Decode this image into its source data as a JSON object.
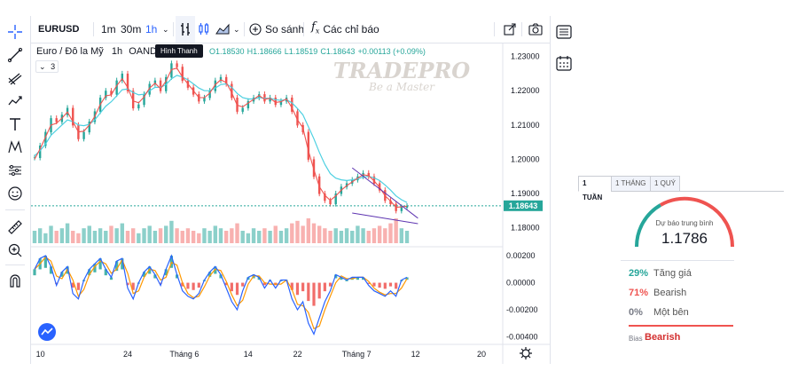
{
  "symbol": "EURUSD",
  "timeframes": [
    "1m",
    "30m",
    "1h"
  ],
  "active_timeframe": "1h",
  "tooltip": "Hình Thanh",
  "compare_label": "So sánh",
  "indicators_label": "Các chỉ báo",
  "legend": {
    "name": "Euro / Đô la Mỹ",
    "interval": "1h",
    "exchange": "OAND",
    "open": "O1.18530",
    "high": "H1.18666",
    "low": "L1.18519",
    "close": "C1.18643",
    "change": "+0.00113 (+0.09%)",
    "collapsed_count": "3"
  },
  "watermark": {
    "brand": "TRADEPRO",
    "tagline": "Be a Master"
  },
  "price_axis": [
    "1.23000",
    "1.22000",
    "1.21000",
    "1.20000",
    "1.19000",
    "1.18000"
  ],
  "current_price": "1.18643",
  "osc_axis": [
    "0.00200",
    "0.00000",
    "-0.00200",
    "-0.00400"
  ],
  "time_axis": [
    "10",
    "24",
    "Tháng 6",
    "14",
    "22",
    "Tháng 7",
    "12",
    "20"
  ],
  "chart_data": {
    "type": "line",
    "title": "Euro / Đô la Mỹ, 1h",
    "price_ylim": [
      1.1755,
      1.2325
    ],
    "price_series": [
      1.2005,
      1.204,
      1.208,
      1.212,
      1.211,
      1.213,
      1.215,
      1.21,
      1.206,
      1.208,
      1.211,
      1.214,
      1.218,
      1.22,
      1.219,
      1.223,
      1.225,
      1.22,
      1.215,
      1.216,
      1.219,
      1.222,
      1.223,
      1.22,
      1.224,
      1.228,
      1.227,
      1.223,
      1.221,
      1.219,
      1.217,
      1.218,
      1.22,
      1.223,
      1.224,
      1.222,
      1.218,
      1.214,
      1.215,
      1.217,
      1.218,
      1.219,
      1.217,
      1.218,
      1.216,
      1.217,
      1.218,
      1.214,
      1.21,
      1.208,
      1.2,
      1.195,
      1.19,
      1.188,
      1.187,
      1.19,
      1.192,
      1.193,
      1.194,
      1.195,
      1.196,
      1.195,
      1.193,
      1.191,
      1.188,
      1.187,
      1.185,
      1.186,
      1.1864
    ],
    "ma_fast": [
      1.2,
      1.203,
      1.2065,
      1.21,
      1.2105,
      1.212,
      1.2138,
      1.211,
      1.208,
      1.2082,
      1.21,
      1.2125,
      1.216,
      1.2185,
      1.2188,
      1.2215,
      1.2235,
      1.221,
      1.217,
      1.2165,
      1.2182,
      1.2208,
      1.2222,
      1.2206,
      1.2228,
      1.2262,
      1.2266,
      1.224,
      1.222,
      1.22,
      1.218,
      1.218,
      1.2193,
      1.2218,
      1.2232,
      1.2224,
      1.2194,
      1.2158,
      1.2153,
      1.2164,
      1.2175,
      1.2186,
      1.2175,
      1.2178,
      1.2166,
      1.2168,
      1.2176,
      1.215,
      1.2115,
      1.2092,
      1.2025,
      1.197,
      1.192,
      1.1895,
      1.188,
      1.1893,
      1.191,
      1.1923,
      1.1934,
      1.1945,
      1.1955,
      1.1952,
      1.1937,
      1.1918,
      1.1893,
      1.1878,
      1.186,
      1.1861,
      1.1863
    ],
    "ma_slow": [
      1.201,
      1.2025,
      1.2045,
      1.207,
      1.2085,
      1.21,
      1.2115,
      1.211,
      1.21,
      1.2098,
      1.2102,
      1.2115,
      1.2135,
      1.2155,
      1.2168,
      1.2185,
      1.2203,
      1.2205,
      1.2195,
      1.2188,
      1.219,
      1.22,
      1.221,
      1.221,
      1.2218,
      1.2235,
      1.2245,
      1.224,
      1.2232,
      1.222,
      1.2208,
      1.22,
      1.22,
      1.2208,
      1.2218,
      1.222,
      1.221,
      1.2192,
      1.218,
      1.2176,
      1.2176,
      1.218,
      1.2178,
      1.2178,
      1.2174,
      1.2172,
      1.2174,
      1.2165,
      1.2148,
      1.213,
      1.2095,
      1.206,
      1.202,
      1.1985,
      1.1958,
      1.1945,
      1.194,
      1.1938,
      1.194,
      1.1943,
      1.1948,
      1.195,
      1.1946,
      1.1938,
      1.1925,
      1.191,
      1.1893,
      1.1882,
      1.1874
    ],
    "volume": [
      0.5,
      0.6,
      0.4,
      0.7,
      0.5,
      0.6,
      0.8,
      0.5,
      0.4,
      0.6,
      0.7,
      0.5,
      0.6,
      0.5,
      0.7,
      0.6,
      0.8,
      0.5,
      0.6,
      0.4,
      0.6,
      0.7,
      0.5,
      0.6,
      0.7,
      0.9,
      0.6,
      0.5,
      0.6,
      0.5,
      0.4,
      0.6,
      0.5,
      0.7,
      0.6,
      0.5,
      0.6,
      0.8,
      0.5,
      0.4,
      0.6,
      0.5,
      0.6,
      0.5,
      0.7,
      0.5,
      0.6,
      0.8,
      0.9,
      0.7,
      1.0,
      0.8,
      0.7,
      0.6,
      0.5,
      0.6,
      0.5,
      0.6,
      0.5,
      0.7,
      0.6,
      0.5,
      0.6,
      0.7,
      0.6,
      0.8,
      1.0,
      0.6,
      0.5
    ],
    "osc_ylim": [
      -0.0043,
      0.0024
    ],
    "osc_series": [
      0.001,
      0.0018,
      0.002,
      0.0012,
      -0.0002,
      0.0008,
      0.0012,
      -0.0008,
      -0.0012,
      0.0002,
      0.001,
      0.0014,
      0.0018,
      0.001,
      0.0004,
      0.0016,
      0.0018,
      -0.0004,
      -0.0012,
      0.0,
      0.0008,
      0.0012,
      0.0006,
      -0.0002,
      0.001,
      0.002,
      0.0006,
      -0.0006,
      -0.001,
      -0.0012,
      -0.0008,
      0.0002,
      0.0008,
      0.0012,
      0.0006,
      -0.0004,
      -0.0014,
      -0.002,
      -0.0006,
      0.0004,
      0.0006,
      0.0004,
      -0.0004,
      0.0002,
      -0.0004,
      0.0002,
      0.0002,
      -0.0012,
      -0.002,
      -0.0014,
      -0.003,
      -0.0038,
      -0.0026,
      -0.0014,
      -0.0006,
      0.0006,
      0.0004,
      0.0002,
      0.0004,
      0.0004,
      0.0004,
      -0.0002,
      -0.0006,
      -0.0008,
      -0.001,
      -0.0006,
      -0.001,
      0.0002,
      0.0004
    ],
    "trendline_upper": [
      [
        58,
        1.1975
      ],
      [
        70,
        1.1828
      ]
    ],
    "trendline_lower": [
      [
        58,
        1.1843
      ],
      [
        70,
        1.1812
      ]
    ]
  },
  "widget": {
    "tabs": [
      "1 TUẦN",
      "1 THÁNG",
      "1 QUÝ"
    ],
    "active_tab": 0,
    "forecast_label": "Dự báo trung bình",
    "forecast_value": "1.1786",
    "rows": [
      {
        "pct": "29%",
        "label": "Tăng giá",
        "color": "#26a69a"
      },
      {
        "pct": "71%",
        "label": "Bearish",
        "color": "#ef5350"
      },
      {
        "pct": "0%",
        "label": "Một bên",
        "color": "#787b86"
      }
    ],
    "bias_label": "Bias",
    "bias_value": "Bearish",
    "colors": {
      "bearish": "#d32f2f",
      "bullish": "#26a69a"
    }
  }
}
